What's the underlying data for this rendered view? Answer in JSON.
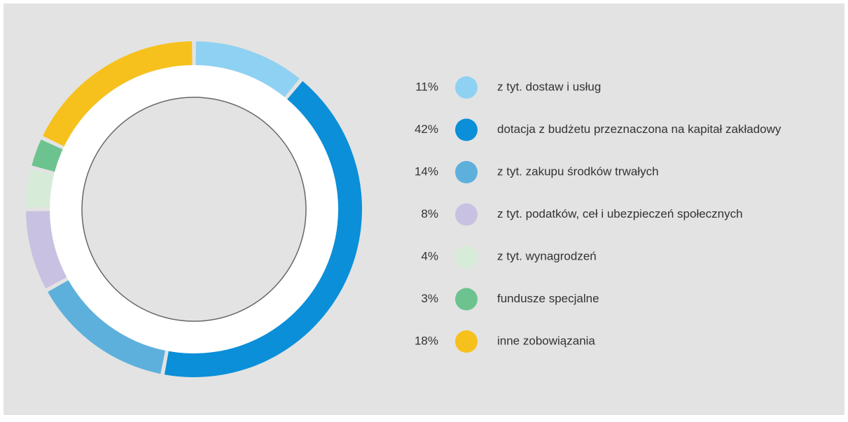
{
  "chart_data": {
    "type": "pie",
    "categories": [
      "z tyt. dostaw i usług",
      "dotacja z budżetu przeznaczona na kapitał zakładowy",
      "z tyt. zakupu środków trwałych",
      "z tyt. podatków, ceł i ubezpieczeń społecznych",
      "z tyt. wynagrodzeń",
      "fundusze specjalne",
      "inne zobowiązania"
    ],
    "values": [
      11,
      42,
      14,
      8,
      4,
      3,
      18
    ],
    "value_labels": [
      "11%",
      "42%",
      "14%",
      "8%",
      "4%",
      "3%",
      "18%"
    ],
    "colors": [
      "#8fd1f2",
      "#0a8fd8",
      "#5eb0dc",
      "#c9c1e1",
      "#d6ecd9",
      "#6dc38f",
      "#f6c11d"
    ]
  }
}
